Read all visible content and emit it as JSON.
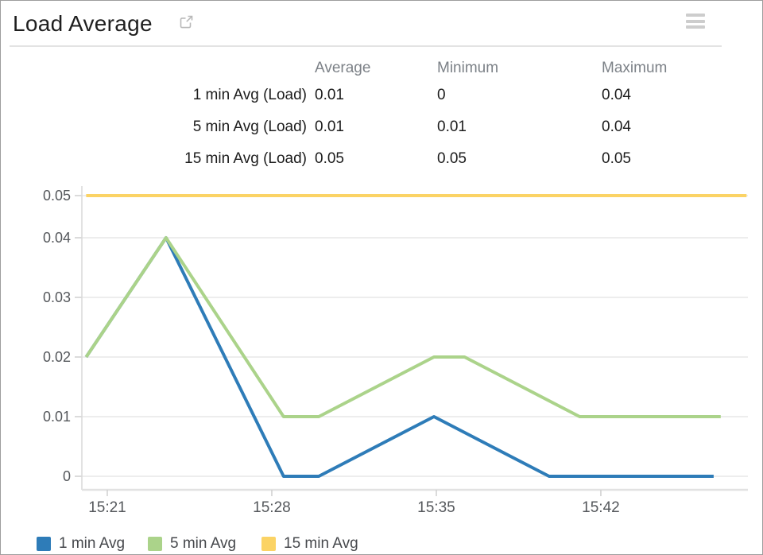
{
  "header": {
    "title": "Load Average",
    "external_link_icon": "external-link-icon",
    "menu_icon": "hamburger-menu-icon"
  },
  "stats_table": {
    "columns": {
      "average": "Average",
      "minimum": "Minimum",
      "maximum": "Maximum"
    },
    "rows": [
      {
        "label": "1 min Avg (Load)",
        "average": "0.01",
        "minimum": "0",
        "maximum": "0.04"
      },
      {
        "label": "5 min Avg (Load)",
        "average": "0.01",
        "minimum": "0.01",
        "maximum": "0.04"
      },
      {
        "label": "15 min Avg (Load)",
        "average": "0.05",
        "minimum": "0.05",
        "maximum": "0.05"
      }
    ]
  },
  "chart_data": {
    "type": "line",
    "title": "Load Average",
    "grid": true,
    "legend_position": "bottom-left",
    "x_axis": {
      "t_definition": "minutes after 15:20",
      "domain_minutes": [
        0,
        28.3
      ],
      "ticks": [
        {
          "t": 1,
          "label": "15:21"
        },
        {
          "t": 8,
          "label": "15:28"
        },
        {
          "t": 15,
          "label": "15:35"
        },
        {
          "t": 22,
          "label": "15:42"
        }
      ]
    },
    "y_axis": {
      "domain": [
        0,
        0.05
      ],
      "ticks": [
        {
          "v": 0,
          "label": "0"
        },
        {
          "v": 0.01,
          "label": "0.01"
        },
        {
          "v": 0.02,
          "label": "0.02"
        },
        {
          "v": 0.03,
          "label": "0.03"
        },
        {
          "v": 0.04,
          "label": "0.04"
        },
        {
          "v": 0.05,
          "label": "0.05"
        }
      ]
    },
    "series": [
      {
        "name": "1 min Avg",
        "color": "#2e7cb8",
        "points": [
          {
            "t": 0.1,
            "v": 0.02
          },
          {
            "t": 3.5,
            "v": 0.04
          },
          {
            "t": 8.5,
            "v": 0
          },
          {
            "t": 10.0,
            "v": 0
          },
          {
            "t": 14.9,
            "v": 0.01
          },
          {
            "t": 19.8,
            "v": 0
          },
          {
            "t": 26.8,
            "v": 0
          }
        ]
      },
      {
        "name": "5 min Avg",
        "color": "#abd38a",
        "points": [
          {
            "t": 0.1,
            "v": 0.02
          },
          {
            "t": 3.5,
            "v": 0.04
          },
          {
            "t": 8.5,
            "v": 0.01
          },
          {
            "t": 10.0,
            "v": 0.01
          },
          {
            "t": 14.9,
            "v": 0.02
          },
          {
            "t": 16.2,
            "v": 0.02
          },
          {
            "t": 21.1,
            "v": 0.01
          },
          {
            "t": 27.1,
            "v": 0.01
          }
        ]
      },
      {
        "name": "15 min Avg",
        "color": "#fbd365",
        "points": [
          {
            "t": 0.1,
            "v": 0.05
          },
          {
            "t": 28.2,
            "v": 0.05
          }
        ]
      }
    ]
  },
  "colors": {
    "series_blue": "#2e7cb8",
    "series_green": "#abd38a",
    "series_yellow": "#fbd365",
    "grid": "#ededed",
    "axis_text": "#55585c",
    "muted_header_text": "#7c8187"
  }
}
